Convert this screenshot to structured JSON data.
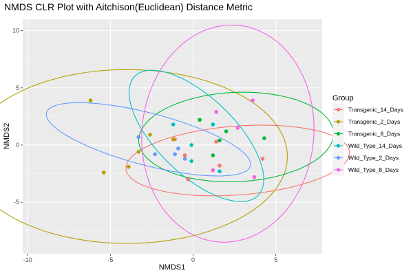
{
  "chart_data": {
    "type": "scatter",
    "title": "NMDS CLR Plot with Aitchison(Euclidean) Distance Metric",
    "xlabel": "NMDS1",
    "ylabel": "NMDS2",
    "xlim": [
      -10.3,
      7.8
    ],
    "ylim": [
      -9.5,
      11.0
    ],
    "xticks": [
      -10,
      -5,
      0,
      5
    ],
    "xtick_labels": [
      "-10",
      "-5",
      "0",
      "5"
    ],
    "yticks": [
      -5,
      0,
      5,
      10
    ],
    "ytick_labels": [
      "-5",
      "0",
      "5",
      "10"
    ],
    "grid": true,
    "legend": {
      "title": "Group",
      "position": "right"
    },
    "series": [
      {
        "name": "Transgenic_14_Days",
        "color": "#F8766D",
        "points": [
          [
            -0.5,
            -0.9
          ],
          [
            -1.1,
            0.5
          ],
          [
            -0.3,
            -3.0
          ],
          [
            1.4,
            0.3
          ],
          [
            1.6,
            -1.8
          ],
          [
            4.2,
            -1.2
          ],
          [
            3.7,
            -2.8
          ]
        ],
        "ellipse": {
          "cx": 2.7,
          "cy": -1.35,
          "rx": 6.8,
          "ry": 3.0,
          "angle": 7
        }
      },
      {
        "name": "Transgenic_2_Days",
        "color": "#B79F00",
        "points": [
          [
            -6.2,
            3.9
          ],
          [
            -5.4,
            -2.4
          ],
          [
            -3.3,
            -0.6
          ],
          [
            -3.9,
            -1.9
          ],
          [
            -2.6,
            0.9
          ],
          [
            -1.2,
            0.5
          ],
          [
            0.4,
            2.2
          ]
        ],
        "ellipse": {
          "cx": -4.0,
          "cy": -1.0,
          "rx": 9.7,
          "ry": 7.6,
          "angle": 0
        }
      },
      {
        "name": "Transgenic_8_Days",
        "color": "#00BA38",
        "points": [
          [
            0.4,
            2.2
          ],
          [
            1.2,
            1.8
          ],
          [
            2.0,
            1.2
          ],
          [
            1.6,
            0.4
          ],
          [
            1.2,
            -0.9
          ],
          [
            4.3,
            0.6
          ]
        ],
        "ellipse": {
          "cx": 2.6,
          "cy": 0.7,
          "rx": 5.9,
          "ry": 3.9,
          "angle": 5
        }
      },
      {
        "name": "Wild_Type_14_Days",
        "color": "#00BFC4",
        "points": [
          [
            -1.2,
            1.8
          ],
          [
            -0.1,
            0.0
          ],
          [
            -0.1,
            -1.4
          ],
          [
            1.2,
            1.8
          ],
          [
            1.6,
            -2.3
          ]
        ],
        "ellipse": {
          "cx": 0.2,
          "cy": 0.8,
          "rx": 6.5,
          "ry": 2.7,
          "angle": -59
        }
      },
      {
        "name": "Wild_Type_2_Days",
        "color": "#619CFF",
        "points": [
          [
            -3.3,
            0.7
          ],
          [
            -2.3,
            -0.8
          ],
          [
            -1.1,
            -0.8
          ],
          [
            -0.9,
            -0.3
          ],
          [
            -0.5,
            -1.2
          ]
        ],
        "ellipse": {
          "cx": -2.7,
          "cy": 0.5,
          "rx": 6.6,
          "ry": 2.2,
          "angle": -22
        }
      },
      {
        "name": "Wild_Type_8_Days",
        "color": "#F564E3",
        "points": [
          [
            1.4,
            2.9
          ],
          [
            2.7,
            1.5
          ],
          [
            3.6,
            3.9
          ],
          [
            1.2,
            -2.2
          ],
          [
            3.7,
            -2.8
          ]
        ],
        "ellipse": {
          "cx": 2.1,
          "cy": 1.0,
          "rx": 9.5,
          "ry": 5.2,
          "angle": 88
        }
      }
    ]
  }
}
